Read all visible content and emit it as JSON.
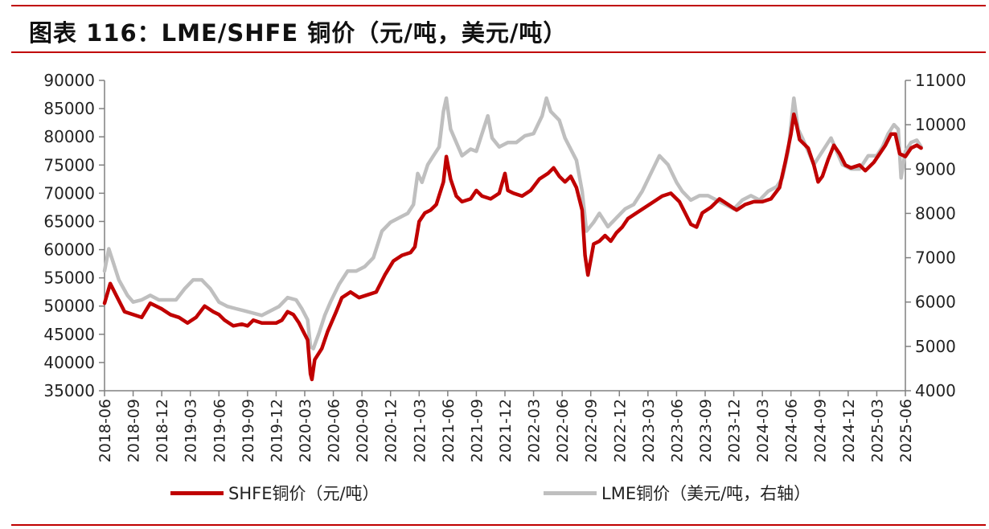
{
  "title": "图表 116：LME/SHFE 铜价（元/吨，美元/吨）",
  "colors": {
    "accent": "#c00000",
    "shfe": "#c00000",
    "lme": "#bfbfbf",
    "axis": "#808080"
  },
  "legend": {
    "shfe": "SHFE铜价（元/吨）",
    "lme": "LME铜价（美元/吨，右轴）"
  },
  "chart_data": {
    "type": "line",
    "x_ticks": [
      "2018-06",
      "2018-09",
      "2018-12",
      "2019-03",
      "2019-06",
      "2019-09",
      "2019-12",
      "2020-03",
      "2020-06",
      "2020-09",
      "2020-12",
      "2021-03",
      "2021-06",
      "2021-09",
      "2021-12",
      "2022-03",
      "2022-06",
      "2022-09",
      "2022-12",
      "2023-03",
      "2023-06",
      "2023-09",
      "2023-12",
      "2024-03",
      "2024-06",
      "2024-09",
      "2024-12",
      "2025-03",
      "2025-06"
    ],
    "y_left": {
      "ylim": [
        35000,
        90000
      ],
      "ticks": [
        90000,
        85000,
        80000,
        75000,
        70000,
        65000,
        60000,
        55000,
        50000,
        45000,
        40000,
        35000
      ]
    },
    "y_right": {
      "ylim": [
        4000,
        11000
      ],
      "ticks": [
        11000,
        10000,
        9000,
        8000,
        7000,
        6000,
        5000,
        4000
      ]
    },
    "series": [
      {
        "name": "SHFE铜价（元/吨）",
        "axis": "left",
        "values": [
          [
            0,
            50500
          ],
          [
            0.2,
            54000
          ],
          [
            0.4,
            52000
          ],
          [
            0.7,
            49000
          ],
          [
            1.0,
            48500
          ],
          [
            1.3,
            48000
          ],
          [
            1.6,
            50500
          ],
          [
            2.0,
            49500
          ],
          [
            2.3,
            48500
          ],
          [
            2.6,
            48000
          ],
          [
            2.9,
            47000
          ],
          [
            3.2,
            48000
          ],
          [
            3.5,
            50000
          ],
          [
            3.8,
            49000
          ],
          [
            4.0,
            48500
          ],
          [
            4.2,
            47500
          ],
          [
            4.5,
            46500
          ],
          [
            4.8,
            46800
          ],
          [
            5.0,
            46500
          ],
          [
            5.2,
            47500
          ],
          [
            5.5,
            47000
          ],
          [
            5.8,
            47000
          ],
          [
            6.0,
            47000
          ],
          [
            6.2,
            47500
          ],
          [
            6.4,
            49000
          ],
          [
            6.6,
            48500
          ],
          [
            6.8,
            47000
          ],
          [
            6.95,
            45500
          ],
          [
            7.1,
            44000
          ],
          [
            7.2,
            38000
          ],
          [
            7.25,
            37000
          ],
          [
            7.35,
            40500
          ],
          [
            7.6,
            42500
          ],
          [
            7.8,
            45500
          ],
          [
            8.1,
            49000
          ],
          [
            8.3,
            51500
          ],
          [
            8.6,
            52500
          ],
          [
            8.9,
            51500
          ],
          [
            9.2,
            52000
          ],
          [
            9.5,
            52500
          ],
          [
            9.8,
            55500
          ],
          [
            10.1,
            58000
          ],
          [
            10.4,
            59000
          ],
          [
            10.7,
            59500
          ],
          [
            10.85,
            60500
          ],
          [
            11.0,
            65000
          ],
          [
            11.2,
            66500
          ],
          [
            11.4,
            67000
          ],
          [
            11.6,
            68000
          ],
          [
            11.85,
            72000
          ],
          [
            11.95,
            76500
          ],
          [
            12.1,
            72500
          ],
          [
            12.3,
            69500
          ],
          [
            12.5,
            68500
          ],
          [
            12.8,
            69000
          ],
          [
            13.0,
            70500
          ],
          [
            13.2,
            69500
          ],
          [
            13.5,
            69000
          ],
          [
            13.8,
            70000
          ],
          [
            14.0,
            73500
          ],
          [
            14.1,
            70500
          ],
          [
            14.3,
            70000
          ],
          [
            14.6,
            69500
          ],
          [
            14.9,
            70500
          ],
          [
            15.2,
            72500
          ],
          [
            15.5,
            73500
          ],
          [
            15.7,
            74500
          ],
          [
            15.9,
            73000
          ],
          [
            16.1,
            72000
          ],
          [
            16.3,
            73000
          ],
          [
            16.5,
            71000
          ],
          [
            16.7,
            67000
          ],
          [
            16.8,
            59000
          ],
          [
            16.9,
            55500
          ],
          [
            17.1,
            61000
          ],
          [
            17.3,
            61500
          ],
          [
            17.5,
            62500
          ],
          [
            17.7,
            61500
          ],
          [
            17.9,
            63000
          ],
          [
            18.1,
            64000
          ],
          [
            18.3,
            65500
          ],
          [
            18.6,
            66500
          ],
          [
            18.9,
            67500
          ],
          [
            19.2,
            68500
          ],
          [
            19.5,
            69500
          ],
          [
            19.8,
            70000
          ],
          [
            20.1,
            68500
          ],
          [
            20.3,
            66500
          ],
          [
            20.5,
            64500
          ],
          [
            20.7,
            64000
          ],
          [
            20.9,
            66500
          ],
          [
            21.2,
            67500
          ],
          [
            21.5,
            69000
          ],
          [
            21.8,
            68000
          ],
          [
            22.1,
            67000
          ],
          [
            22.4,
            68000
          ],
          [
            22.7,
            68500
          ],
          [
            23.0,
            68500
          ],
          [
            23.3,
            69000
          ],
          [
            23.6,
            71000
          ],
          [
            23.8,
            75500
          ],
          [
            24.0,
            80500
          ],
          [
            24.1,
            84000
          ],
          [
            24.2,
            82000
          ],
          [
            24.3,
            79500
          ],
          [
            24.6,
            78000
          ],
          [
            24.8,
            75000
          ],
          [
            24.95,
            72000
          ],
          [
            25.1,
            73000
          ],
          [
            25.3,
            76000
          ],
          [
            25.5,
            78500
          ],
          [
            25.7,
            77000
          ],
          [
            25.9,
            75000
          ],
          [
            26.1,
            74500
          ],
          [
            26.4,
            75000
          ],
          [
            26.6,
            74000
          ],
          [
            26.9,
            75500
          ],
          [
            27.1,
            77000
          ],
          [
            27.3,
            78500
          ],
          [
            27.5,
            80500
          ],
          [
            27.65,
            80500
          ],
          [
            27.8,
            77000
          ],
          [
            28.0,
            76500
          ],
          [
            28.2,
            78000
          ],
          [
            28.4,
            78500
          ],
          [
            28.55,
            78000
          ]
        ]
      },
      {
        "name": "LME铜价（美元/吨，右轴）",
        "axis": "right",
        "values": [
          [
            0,
            6700
          ],
          [
            0.15,
            7200
          ],
          [
            0.3,
            6900
          ],
          [
            0.5,
            6500
          ],
          [
            0.8,
            6150
          ],
          [
            1.0,
            6000
          ],
          [
            1.3,
            6050
          ],
          [
            1.6,
            6150
          ],
          [
            1.9,
            6050
          ],
          [
            2.2,
            6050
          ],
          [
            2.5,
            6050
          ],
          [
            2.8,
            6300
          ],
          [
            3.1,
            6500
          ],
          [
            3.4,
            6500
          ],
          [
            3.7,
            6300
          ],
          [
            4.0,
            6000
          ],
          [
            4.3,
            5900
          ],
          [
            4.6,
            5850
          ],
          [
            4.9,
            5800
          ],
          [
            5.2,
            5750
          ],
          [
            5.5,
            5700
          ],
          [
            5.8,
            5800
          ],
          [
            6.1,
            5900
          ],
          [
            6.4,
            6100
          ],
          [
            6.7,
            6050
          ],
          [
            6.9,
            5850
          ],
          [
            7.1,
            5600
          ],
          [
            7.2,
            5000
          ],
          [
            7.3,
            4950
          ],
          [
            7.5,
            5300
          ],
          [
            7.7,
            5700
          ],
          [
            7.9,
            6000
          ],
          [
            8.2,
            6400
          ],
          [
            8.5,
            6700
          ],
          [
            8.8,
            6700
          ],
          [
            9.1,
            6800
          ],
          [
            9.4,
            7000
          ],
          [
            9.7,
            7600
          ],
          [
            10.0,
            7800
          ],
          [
            10.3,
            7900
          ],
          [
            10.6,
            8000
          ],
          [
            10.8,
            8200
          ],
          [
            10.95,
            8900
          ],
          [
            11.1,
            8700
          ],
          [
            11.3,
            9100
          ],
          [
            11.5,
            9300
          ],
          [
            11.7,
            9500
          ],
          [
            11.85,
            10300
          ],
          [
            11.95,
            10600
          ],
          [
            12.1,
            9900
          ],
          [
            12.3,
            9600
          ],
          [
            12.5,
            9300
          ],
          [
            12.8,
            9450
          ],
          [
            13.0,
            9400
          ],
          [
            13.2,
            9800
          ],
          [
            13.4,
            10200
          ],
          [
            13.55,
            9700
          ],
          [
            13.8,
            9500
          ],
          [
            14.1,
            9600
          ],
          [
            14.4,
            9600
          ],
          [
            14.7,
            9750
          ],
          [
            15.0,
            9800
          ],
          [
            15.3,
            10200
          ],
          [
            15.45,
            10600
          ],
          [
            15.6,
            10300
          ],
          [
            15.9,
            10100
          ],
          [
            16.1,
            9700
          ],
          [
            16.3,
            9450
          ],
          [
            16.5,
            9200
          ],
          [
            16.7,
            8500
          ],
          [
            16.85,
            7600
          ],
          [
            17.1,
            7800
          ],
          [
            17.3,
            8000
          ],
          [
            17.6,
            7700
          ],
          [
            17.9,
            7900
          ],
          [
            18.2,
            8100
          ],
          [
            18.5,
            8200
          ],
          [
            18.8,
            8500
          ],
          [
            19.1,
            8900
          ],
          [
            19.4,
            9300
          ],
          [
            19.7,
            9100
          ],
          [
            20.0,
            8700
          ],
          [
            20.2,
            8500
          ],
          [
            20.5,
            8300
          ],
          [
            20.8,
            8400
          ],
          [
            21.1,
            8400
          ],
          [
            21.4,
            8300
          ],
          [
            21.7,
            8200
          ],
          [
            22.0,
            8100
          ],
          [
            22.3,
            8300
          ],
          [
            22.6,
            8400
          ],
          [
            22.9,
            8300
          ],
          [
            23.2,
            8500
          ],
          [
            23.5,
            8600
          ],
          [
            23.7,
            8800
          ],
          [
            23.9,
            9400
          ],
          [
            24.1,
            10600
          ],
          [
            24.25,
            9900
          ],
          [
            24.4,
            9700
          ],
          [
            24.6,
            9400
          ],
          [
            24.8,
            9100
          ],
          [
            25.0,
            9300
          ],
          [
            25.2,
            9500
          ],
          [
            25.4,
            9700
          ],
          [
            25.6,
            9400
          ],
          [
            25.8,
            9100
          ],
          [
            26.1,
            9000
          ],
          [
            26.4,
            9000
          ],
          [
            26.7,
            9300
          ],
          [
            27.0,
            9300
          ],
          [
            27.2,
            9500
          ],
          [
            27.4,
            9800
          ],
          [
            27.6,
            10000
          ],
          [
            27.75,
            9900
          ],
          [
            27.85,
            8800
          ],
          [
            28.0,
            9400
          ],
          [
            28.2,
            9600
          ],
          [
            28.4,
            9650
          ],
          [
            28.55,
            9500
          ]
        ]
      }
    ]
  }
}
